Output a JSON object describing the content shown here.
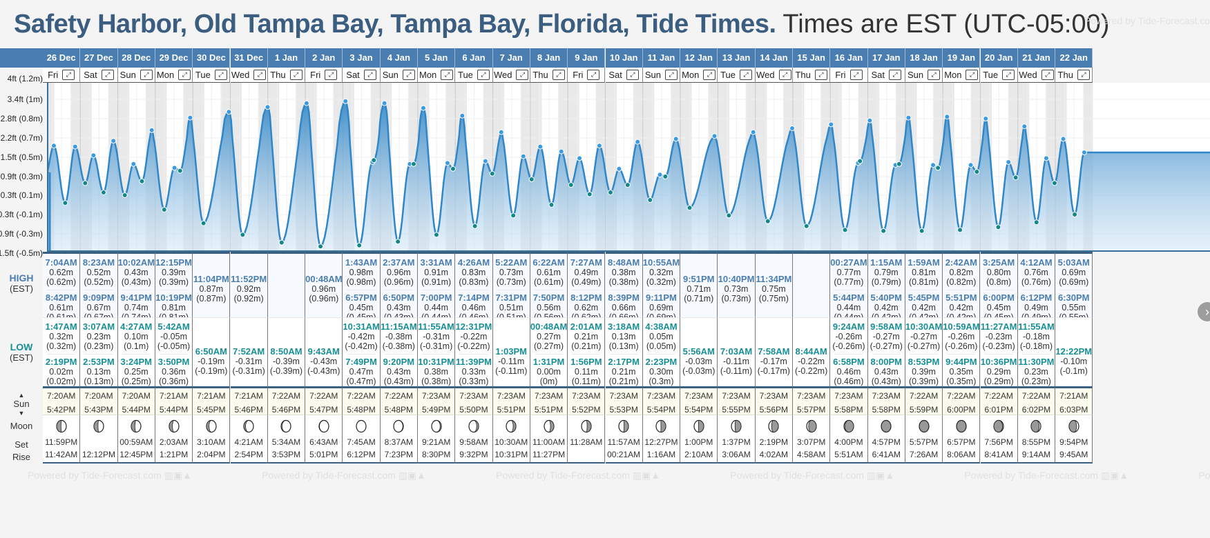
{
  "header": {
    "location": "Safety Harbor, Old Tampa Bay, Tampa Bay, Florida, Tide Times.",
    "timezone_note": "Times are EST (UTC-05:00)",
    "watermark": "Powered by Tide-Forecast.com"
  },
  "row_labels": {
    "high": "HIGH",
    "high_tz": "(EST)",
    "low": "LOW",
    "low_tz": "(EST)",
    "sun": "Sun",
    "moon": "Moon",
    "set": "Set",
    "rise": "Rise"
  },
  "colors": {
    "header_blue": "#4a7eb0",
    "high_text": "#4a7eb0",
    "low_text": "#178f97",
    "tide_line": "#2f86c8",
    "high_dot": "#3a9be0",
    "low_dot": "#14878a"
  },
  "chart_data": {
    "type": "area",
    "title": "Tide height",
    "ylabel": "Height",
    "y_ticks": [
      "4ft (1.2m)",
      "3.4ft (1m)",
      "2.8ft (0.8m)",
      "2.2ft (0.7m)",
      "1.5ft (0.5m)",
      "0.9ft (0.3m)",
      "0.3ft (0.1m)",
      "-0.3ft (-0.1m)",
      "-0.9ft (-0.3m)",
      "-1.5ft (-0.5m)"
    ],
    "ylim_m": [
      -0.5,
      1.15
    ],
    "grid": true
  },
  "days": [
    {
      "date": "26 Dec",
      "dow": "Fri",
      "high": [
        {
          "t": "7:04AM",
          "h": "0.62m",
          "m": "(0.62m)"
        },
        {
          "t": "8:42PM",
          "h": "0.61m",
          "m": "(0.61m)"
        }
      ],
      "low": [
        {
          "t": "1:47AM",
          "h": "0.32m",
          "m": "(0.32m)"
        },
        {
          "t": "2:19PM",
          "h": "0.02m",
          "m": "(0.02m)"
        }
      ],
      "sunrise": "7:20AM",
      "sunset": "5:42PM",
      "moon_phase": 0.45,
      "moon_set": "11:59PM",
      "moon_rise": "11:42AM"
    },
    {
      "date": "27 Dec",
      "dow": "Sat",
      "high": [
        {
          "t": "8:23AM",
          "h": "0.52m",
          "m": "(0.52m)"
        },
        {
          "t": "9:09PM",
          "h": "0.67m",
          "m": "(0.67m)"
        }
      ],
      "low": [
        {
          "t": "3:07AM",
          "h": "0.23m",
          "m": "(0.23m)"
        },
        {
          "t": "2:53PM",
          "h": "0.13m",
          "m": "(0.13m)"
        }
      ],
      "sunrise": "7:20AM",
      "sunset": "5:43PM",
      "moon_phase": 0.42,
      "moon_set": "",
      "moon_rise": "12:12PM"
    },
    {
      "date": "28 Dec",
      "dow": "Sun",
      "high": [
        {
          "t": "10:02AM",
          "h": "0.43m",
          "m": "(0.43m)"
        },
        {
          "t": "9:41PM",
          "h": "0.74m",
          "m": "(0.74m)"
        }
      ],
      "low": [
        {
          "t": "4:27AM",
          "h": "0.10m",
          "m": "(0.1m)"
        },
        {
          "t": "3:24PM",
          "h": "0.25m",
          "m": "(0.25m)"
        }
      ],
      "sunrise": "7:20AM",
      "sunset": "5:44PM",
      "moon_phase": 0.38,
      "moon_set": "00:59AM",
      "moon_rise": "12:45PM"
    },
    {
      "date": "29 Dec",
      "dow": "Mon",
      "high": [
        {
          "t": "12:15PM",
          "h": "0.39m",
          "m": "(0.39m)"
        },
        {
          "t": "10:19PM",
          "h": "0.81m",
          "m": "(0.81m)"
        }
      ],
      "low": [
        {
          "t": "5:42AM",
          "h": "-0.05m",
          "m": "(-0.05m)"
        },
        {
          "t": "3:50PM",
          "h": "0.36m",
          "m": "(0.36m)"
        }
      ],
      "sunrise": "7:21AM",
      "sunset": "5:44PM",
      "moon_phase": 0.33,
      "moon_set": "2:03AM",
      "moon_rise": "1:21PM"
    },
    {
      "date": "30 Dec",
      "dow": "Tue",
      "high": [
        {
          "t": "11:04PM",
          "h": "0.87m",
          "m": "(0.87m)"
        }
      ],
      "low": [
        {
          "t": "6:50AM",
          "h": "-0.19m",
          "m": "(-0.19m)"
        }
      ],
      "sunrise": "7:21AM",
      "sunset": "5:45PM",
      "moon_phase": 0.26,
      "moon_set": "3:10AM",
      "moon_rise": "2:04PM"
    },
    {
      "date": "31 Dec",
      "dow": "Wed",
      "high": [
        {
          "t": "11:52PM",
          "h": "0.92m",
          "m": "(0.92m)"
        }
      ],
      "low": [
        {
          "t": "7:52AM",
          "h": "-0.31m",
          "m": "(-0.31m)"
        }
      ],
      "sunrise": "7:21AM",
      "sunset": "5:46PM",
      "moon_phase": 0.18,
      "moon_set": "4:21AM",
      "moon_rise": "2:54PM"
    },
    {
      "date": "1 Jan",
      "dow": "Thu",
      "high": [],
      "low": [
        {
          "t": "8:50AM",
          "h": "-0.39m",
          "m": "(-0.39m)"
        }
      ],
      "sunrise": "7:22AM",
      "sunset": "5:46PM",
      "moon_phase": 0.1,
      "moon_set": "5:34AM",
      "moon_rise": "3:53PM"
    },
    {
      "date": "2 Jan",
      "dow": "Fri",
      "high": [
        {
          "t": "00:48AM",
          "h": "0.96m",
          "m": "(0.96m)"
        }
      ],
      "low": [
        {
          "t": "9:43AM",
          "h": "-0.43m",
          "m": "(-0.43m)"
        }
      ],
      "sunrise": "7:22AM",
      "sunset": "5:47PM",
      "moon_phase": 0.04,
      "moon_set": "6:43AM",
      "moon_rise": "5:01PM"
    },
    {
      "date": "3 Jan",
      "dow": "Sat",
      "high": [
        {
          "t": "1:43AM",
          "h": "0.98m",
          "m": "(0.98m)"
        },
        {
          "t": "6:57PM",
          "h": "0.45m",
          "m": "(0.45m)"
        }
      ],
      "low": [
        {
          "t": "10:31AM",
          "h": "-0.42m",
          "m": "(-0.42m)"
        },
        {
          "t": "7:49PM",
          "h": "0.47m",
          "m": "(0.47m)"
        }
      ],
      "sunrise": "7:22AM",
      "sunset": "5:48PM",
      "moon_phase": 0.0,
      "moon_set": "7:45AM",
      "moon_rise": "6:12PM"
    },
    {
      "date": "4 Jan",
      "dow": "Sun",
      "high": [
        {
          "t": "2:37AM",
          "h": "0.96m",
          "m": "(0.96m)"
        },
        {
          "t": "6:50PM",
          "h": "0.43m",
          "m": "(0.43m)"
        }
      ],
      "low": [
        {
          "t": "11:15AM",
          "h": "-0.38m",
          "m": "(-0.38m)"
        },
        {
          "t": "9:20PM",
          "h": "0.43m",
          "m": "(0.43m)"
        }
      ],
      "sunrise": "7:22AM",
      "sunset": "5:48PM",
      "moon_phase": -0.05,
      "moon_set": "8:37AM",
      "moon_rise": "7:23PM"
    },
    {
      "date": "5 Jan",
      "dow": "Mon",
      "high": [
        {
          "t": "3:31AM",
          "h": "0.91m",
          "m": "(0.91m)"
        },
        {
          "t": "7:00PM",
          "h": "0.44m",
          "m": "(0.44m)"
        }
      ],
      "low": [
        {
          "t": "11:55AM",
          "h": "-0.31m",
          "m": "(-0.31m)"
        },
        {
          "t": "10:31PM",
          "h": "0.38m",
          "m": "(0.38m)"
        }
      ],
      "sunrise": "7:23AM",
      "sunset": "5:49PM",
      "moon_phase": -0.12,
      "moon_set": "9:21AM",
      "moon_rise": "8:30PM"
    },
    {
      "date": "6 Jan",
      "dow": "Tue",
      "high": [
        {
          "t": "4:26AM",
          "h": "0.83m",
          "m": "(0.83m)"
        },
        {
          "t": "7:14PM",
          "h": "0.46m",
          "m": "(0.46m)"
        }
      ],
      "low": [
        {
          "t": "12:31PM",
          "h": "-0.22m",
          "m": "(-0.22m)"
        },
        {
          "t": "11:39PM",
          "h": "0.33m",
          "m": "(0.33m)"
        }
      ],
      "sunrise": "7:23AM",
      "sunset": "5:50PM",
      "moon_phase": -0.2,
      "moon_set": "9:58AM",
      "moon_rise": "9:32PM"
    },
    {
      "date": "7 Jan",
      "dow": "Wed",
      "high": [
        {
          "t": "5:22AM",
          "h": "0.73m",
          "m": "(0.73m)"
        },
        {
          "t": "7:31PM",
          "h": "0.51m",
          "m": "(0.51m)"
        }
      ],
      "low": [
        {
          "t": "1:03PM",
          "h": "-0.11m",
          "m": "(-0.11m)"
        }
      ],
      "sunrise": "7:23AM",
      "sunset": "5:51PM",
      "moon_phase": -0.28,
      "moon_set": "10:30AM",
      "moon_rise": "10:31PM"
    },
    {
      "date": "8 Jan",
      "dow": "Thu",
      "high": [
        {
          "t": "6:22AM",
          "h": "0.61m",
          "m": "(0.61m)"
        },
        {
          "t": "7:50PM",
          "h": "0.56m",
          "m": "(0.56m)"
        }
      ],
      "low": [
        {
          "t": "00:48AM",
          "h": "0.27m",
          "m": "(0.27m)"
        },
        {
          "t": "1:31PM",
          "h": "0.00m",
          "m": "(0m)"
        }
      ],
      "sunrise": "7:23AM",
      "sunset": "5:51PM",
      "moon_phase": -0.35,
      "moon_set": "11:00AM",
      "moon_rise": "11:27PM"
    },
    {
      "date": "9 Jan",
      "dow": "Fri",
      "high": [
        {
          "t": "7:27AM",
          "h": "0.49m",
          "m": "(0.49m)"
        },
        {
          "t": "8:12PM",
          "h": "0.62m",
          "m": "(0.62m)"
        }
      ],
      "low": [
        {
          "t": "2:01AM",
          "h": "0.21m",
          "m": "(0.21m)"
        },
        {
          "t": "1:56PM",
          "h": "0.11m",
          "m": "(0.11m)"
        }
      ],
      "sunrise": "7:23AM",
      "sunset": "5:52PM",
      "moon_phase": -0.42,
      "moon_set": "11:28AM",
      "moon_rise": ""
    },
    {
      "date": "10 Jan",
      "dow": "Sat",
      "high": [
        {
          "t": "8:48AM",
          "h": "0.38m",
          "m": "(0.38m)"
        },
        {
          "t": "8:39PM",
          "h": "0.66m",
          "m": "(0.66m)"
        }
      ],
      "low": [
        {
          "t": "3:18AM",
          "h": "0.13m",
          "m": "(0.13m)"
        },
        {
          "t": "2:17PM",
          "h": "0.21m",
          "m": "(0.21m)"
        }
      ],
      "sunrise": "7:23AM",
      "sunset": "5:53PM",
      "moon_phase": -0.46,
      "moon_set": "11:57AM",
      "moon_rise": "00:21AM"
    },
    {
      "date": "11 Jan",
      "dow": "Sun",
      "high": [
        {
          "t": "10:55AM",
          "h": "0.32m",
          "m": "(0.32m)"
        },
        {
          "t": "9:11PM",
          "h": "0.69m",
          "m": "(0.69m)"
        }
      ],
      "low": [
        {
          "t": "4:38AM",
          "h": "0.05m",
          "m": "(0.05m)"
        },
        {
          "t": "2:23PM",
          "h": "0.30m",
          "m": "(0.3m)"
        }
      ],
      "sunrise": "7:23AM",
      "sunset": "5:54PM",
      "moon_phase": -0.5,
      "moon_set": "12:27PM",
      "moon_rise": "1:16AM"
    },
    {
      "date": "12 Jan",
      "dow": "Mon",
      "high": [
        {
          "t": "9:51PM",
          "h": "0.71m",
          "m": "(0.71m)"
        }
      ],
      "low": [
        {
          "t": "5:56AM",
          "h": "-0.03m",
          "m": "(-0.03m)"
        }
      ],
      "sunrise": "7:23AM",
      "sunset": "5:54PM",
      "moon_phase": -0.55,
      "moon_set": "1:00PM",
      "moon_rise": "2:10AM"
    },
    {
      "date": "13 Jan",
      "dow": "Tue",
      "high": [
        {
          "t": "10:40PM",
          "h": "0.73m",
          "m": "(0.73m)"
        }
      ],
      "low": [
        {
          "t": "7:03AM",
          "h": "-0.11m",
          "m": "(-0.11m)"
        }
      ],
      "sunrise": "7:23AM",
      "sunset": "5:55PM",
      "moon_phase": -0.62,
      "moon_set": "1:37PM",
      "moon_rise": "3:06AM"
    },
    {
      "date": "14 Jan",
      "dow": "Wed",
      "high": [
        {
          "t": "11:34PM",
          "h": "0.75m",
          "m": "(0.75m)"
        }
      ],
      "low": [
        {
          "t": "7:58AM",
          "h": "-0.17m",
          "m": "(-0.17m)"
        }
      ],
      "sunrise": "7:23AM",
      "sunset": "5:56PM",
      "moon_phase": -0.7,
      "moon_set": "2:19PM",
      "moon_rise": "4:02AM"
    },
    {
      "date": "15 Jan",
      "dow": "Thu",
      "high": [],
      "low": [
        {
          "t": "8:44AM",
          "h": "-0.22m",
          "m": "(-0.22m)"
        }
      ],
      "sunrise": "7:23AM",
      "sunset": "5:57PM",
      "moon_phase": -0.8,
      "moon_set": "3:07PM",
      "moon_rise": "4:58AM"
    },
    {
      "date": "16 Jan",
      "dow": "Fri",
      "high": [
        {
          "t": "00:27AM",
          "h": "0.77m",
          "m": "(0.77m)"
        },
        {
          "t": "5:44PM",
          "h": "0.44m",
          "m": "(0.44m)"
        }
      ],
      "low": [
        {
          "t": "9:24AM",
          "h": "-0.26m",
          "m": "(-0.26m)"
        },
        {
          "t": "6:58PM",
          "h": "0.46m",
          "m": "(0.46m)"
        }
      ],
      "sunrise": "7:23AM",
      "sunset": "5:58PM",
      "moon_phase": -0.9,
      "moon_set": "4:00PM",
      "moon_rise": "5:51AM"
    },
    {
      "date": "17 Jan",
      "dow": "Sat",
      "high": [
        {
          "t": "1:15AM",
          "h": "0.79m",
          "m": "(0.79m)"
        },
        {
          "t": "5:40PM",
          "h": "0.42m",
          "m": "(0.42m)"
        }
      ],
      "low": [
        {
          "t": "9:58AM",
          "h": "-0.27m",
          "m": "(-0.27m)"
        },
        {
          "t": "8:00PM",
          "h": "0.43m",
          "m": "(0.43m)"
        }
      ],
      "sunrise": "7:23AM",
      "sunset": "5:58PM",
      "moon_phase": -0.97,
      "moon_set": "4:57PM",
      "moon_rise": "6:41AM"
    },
    {
      "date": "18 Jan",
      "dow": "Sun",
      "high": [
        {
          "t": "1:59AM",
          "h": "0.81m",
          "m": "(0.81m)"
        },
        {
          "t": "5:45PM",
          "h": "0.42m",
          "m": "(0.42m)"
        }
      ],
      "low": [
        {
          "t": "10:30AM",
          "h": "-0.27m",
          "m": "(-0.27m)"
        },
        {
          "t": "8:53PM",
          "h": "0.39m",
          "m": "(0.39m)"
        }
      ],
      "sunrise": "7:22AM",
      "sunset": "5:59PM",
      "moon_phase": 1.0,
      "moon_set": "5:57PM",
      "moon_rise": "7:26AM"
    },
    {
      "date": "19 Jan",
      "dow": "Mon",
      "high": [
        {
          "t": "2:42AM",
          "h": "0.82m",
          "m": "(0.82m)"
        },
        {
          "t": "5:51PM",
          "h": "0.42m",
          "m": "(0.42m)"
        }
      ],
      "low": [
        {
          "t": "10:59AM",
          "h": "-0.26m",
          "m": "(-0.26m)"
        },
        {
          "t": "9:44PM",
          "h": "0.35m",
          "m": "(0.35m)"
        }
      ],
      "sunrise": "7:22AM",
      "sunset": "6:00PM",
      "moon_phase": 0.96,
      "moon_set": "6:57PM",
      "moon_rise": "8:06AM"
    },
    {
      "date": "20 Jan",
      "dow": "Tue",
      "high": [
        {
          "t": "3:25AM",
          "h": "0.80m",
          "m": "(0.8m)"
        },
        {
          "t": "6:00PM",
          "h": "0.45m",
          "m": "(0.45m)"
        }
      ],
      "low": [
        {
          "t": "11:27AM",
          "h": "-0.23m",
          "m": "(-0.23m)"
        },
        {
          "t": "10:36PM",
          "h": "0.29m",
          "m": "(0.29m)"
        }
      ],
      "sunrise": "7:22AM",
      "sunset": "6:01PM",
      "moon_phase": 0.9,
      "moon_set": "7:56PM",
      "moon_rise": "8:41AM"
    },
    {
      "date": "21 Jan",
      "dow": "Wed",
      "high": [
        {
          "t": "4:12AM",
          "h": "0.76m",
          "m": "(0.76m)"
        },
        {
          "t": "6:12PM",
          "h": "0.49m",
          "m": "(0.49m)"
        }
      ],
      "low": [
        {
          "t": "11:55AM",
          "h": "-0.18m",
          "m": "(-0.18m)"
        },
        {
          "t": "11:30PM",
          "h": "0.23m",
          "m": "(0.23m)"
        }
      ],
      "sunrise": "7:22AM",
      "sunset": "6:02PM",
      "moon_phase": 0.84,
      "moon_set": "8:55PM",
      "moon_rise": "9:14AM"
    },
    {
      "date": "22 Jan",
      "dow": "Thu",
      "high": [
        {
          "t": "5:03AM",
          "h": "0.69m",
          "m": "(0.69m)"
        },
        {
          "t": "6:30PM",
          "h": "0.55m",
          "m": "(0.55m)"
        }
      ],
      "low": [
        {
          "t": "12:22PM",
          "h": "-0.10m",
          "m": "(-0.1m)"
        }
      ],
      "sunrise": "7:21AM",
      "sunset": "6:03PM",
      "moon_phase": 0.78,
      "moon_set": "9:54PM",
      "moon_rise": "9:45AM"
    }
  ],
  "nav": {
    "next_icon": "chevron-right-icon",
    "expand_icon": "expand-arrows-icon"
  }
}
